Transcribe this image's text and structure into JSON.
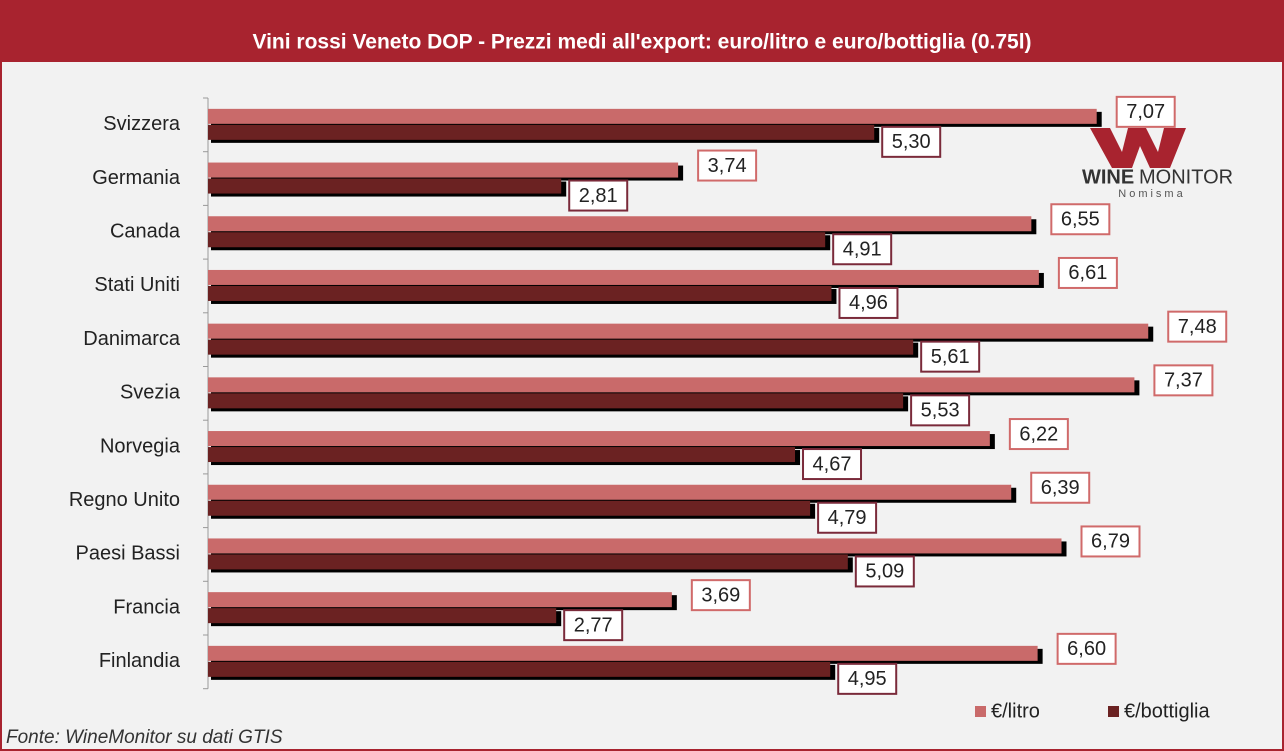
{
  "chart_data": {
    "type": "bar",
    "orientation": "horizontal",
    "title": "Vini rossi Veneto DOP - Prezzi medi all'export:  euro/litro e euro/bottiglia  (0.75l)",
    "categories": [
      "Svizzera",
      "Germania",
      "Canada",
      "Stati Uniti",
      "Danimarca",
      "Svezia",
      "Norvegia",
      "Regno Unito",
      "Paesi Bassi",
      "Francia",
      "Finlandia"
    ],
    "series": [
      {
        "name": "€/litro",
        "color": "#c96a6a",
        "values": [
          7.07,
          3.74,
          6.55,
          6.61,
          7.48,
          7.37,
          6.22,
          6.39,
          6.79,
          3.69,
          6.6
        ],
        "value_labels": [
          "7,07",
          "3,74",
          "6,55",
          "6,61",
          "7,48",
          "7,37",
          "6,22",
          "6,39",
          "6,79",
          "3,69",
          "6,60"
        ]
      },
      {
        "name": "€/bottiglia",
        "color": "#6b2222",
        "values": [
          5.3,
          2.81,
          4.91,
          4.96,
          5.61,
          5.53,
          4.67,
          4.79,
          5.09,
          2.77,
          4.95
        ],
        "value_labels": [
          "5,30",
          "2,81",
          "4,91",
          "4,96",
          "5,61",
          "5,53",
          "4,67",
          "4,79",
          "5,09",
          "2,77",
          "4,95"
        ]
      }
    ],
    "legend": "bottom-right",
    "source": "Fonte: WineMonitor su dati GTIS",
    "logo": {
      "wine": "WINE",
      "monitor": "MONITOR",
      "brand": "Nomisma"
    }
  }
}
